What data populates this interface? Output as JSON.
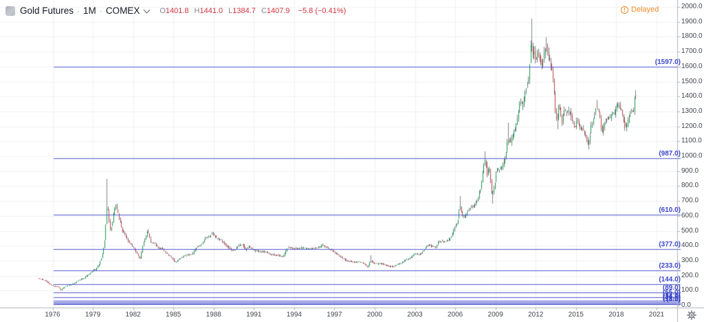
{
  "header": {
    "symbol_title": "Gold Futures",
    "separator": "·",
    "interval": "1M",
    "exchange": "COMEX",
    "ohlc": {
      "o_label": "O",
      "o": "1401.8",
      "h_label": "H",
      "h": "1441.0",
      "l_label": "L",
      "l": "1384.7",
      "c_label": "C",
      "c": "1407.9",
      "change": "−5.8 (−0.41%)"
    },
    "delayed_icon_glyph": "!",
    "delayed_label": "Delayed"
  },
  "colors": {
    "background": "#ffffff",
    "grid": "#f0f1f4",
    "border": "#b2b5be",
    "axis_text": "#42454e",
    "up_candle": "#109648",
    "down_candle": "#bf3d42",
    "wick": "#7f828a",
    "level_line": "#5058d0",
    "level_label": "#3c47c6",
    "negative_red": "#d0323f",
    "delayed_orange": "#ee8b27"
  },
  "price_axis": {
    "labels": [
      "2000.0",
      "1900.0",
      "1800.0",
      "1700.0",
      "1600.0",
      "1500.0",
      "1400.0",
      "1300.0",
      "1200.0",
      "1100.0",
      "1000.0",
      "900.0",
      "800.0",
      "700.0",
      "600.0",
      "500.0",
      "400.0",
      "300.0",
      "200.0",
      "100.0",
      "0.0"
    ]
  },
  "time_axis": {
    "years": [
      "1976",
      "1979",
      "1982",
      "1985",
      "1988",
      "1991",
      "1994",
      "1997",
      "2000",
      "2003",
      "2006",
      "2009",
      "2012",
      "2015",
      "2018",
      "2021"
    ]
  },
  "levels": [
    {
      "price": 1597.0,
      "label": "(1597.0)"
    },
    {
      "price": 987.0,
      "label": "(987.0)"
    },
    {
      "price": 610.0,
      "label": "(610.0)"
    },
    {
      "price": 377.0,
      "label": "(377.0)"
    },
    {
      "price": 233.0,
      "label": "(233.0)"
    },
    {
      "price": 144.0,
      "label": "(144.0)"
    },
    {
      "price": 89.0,
      "label": "(89.0)"
    },
    {
      "price": 55.0,
      "label": "(55.0)"
    },
    {
      "price": 34.0,
      "label": "(34.0)"
    },
    {
      "price": 21.0,
      "label": "(21.0)"
    },
    {
      "price": 13.0,
      "label": "(13.0)"
    },
    {
      "price": 8.0,
      "label": "(8.0)"
    }
  ],
  "chart_data": {
    "type": "candlestick",
    "title": "Gold Futures 1M COMEX",
    "interval_months": 1,
    "y_range": [
      0,
      2000
    ],
    "y_step": 100,
    "x_year_ticks": [
      1976,
      1979,
      1982,
      1985,
      1988,
      1991,
      1994,
      1997,
      2000,
      2003,
      2006,
      2009,
      2012,
      2015,
      2018,
      2021
    ],
    "t_start": 1974.9,
    "t_end": 2019.47,
    "last_candle": {
      "open": 1401.8,
      "high": 1441.0,
      "low": 1384.7,
      "close": 1407.9,
      "change": -5.8,
      "change_pct": -0.41
    },
    "fib_levels": [
      1597,
      987,
      610,
      377,
      233,
      144,
      89,
      55,
      34,
      21,
      13,
      8
    ],
    "price_path": [
      [
        1974.9,
        184
      ],
      [
        1975.2,
        176
      ],
      [
        1975.5,
        165
      ],
      [
        1975.8,
        142
      ],
      [
        1976.1,
        131
      ],
      [
        1976.4,
        127
      ],
      [
        1976.65,
        104
      ],
      [
        1976.9,
        125
      ],
      [
        1977.2,
        135
      ],
      [
        1977.6,
        146
      ],
      [
        1978.0,
        172
      ],
      [
        1978.4,
        184
      ],
      [
        1978.7,
        208
      ],
      [
        1979.0,
        233
      ],
      [
        1979.25,
        242
      ],
      [
        1979.5,
        278
      ],
      [
        1979.7,
        330
      ],
      [
        1979.85,
        400
      ],
      [
        1979.95,
        470
      ],
      [
        1980.04,
        660
      ],
      [
        1980.15,
        640
      ],
      [
        1980.3,
        505
      ],
      [
        1980.45,
        540
      ],
      [
        1980.6,
        630
      ],
      [
        1980.72,
        680
      ],
      [
        1980.85,
        640
      ],
      [
        1981.0,
        580
      ],
      [
        1981.2,
        505
      ],
      [
        1981.45,
        470
      ],
      [
        1981.7,
        420
      ],
      [
        1981.95,
        400
      ],
      [
        1982.2,
        365
      ],
      [
        1982.45,
        325
      ],
      [
        1982.55,
        310
      ],
      [
        1982.75,
        405
      ],
      [
        1982.95,
        455
      ],
      [
        1983.1,
        500
      ],
      [
        1983.3,
        425
      ],
      [
        1983.6,
        415
      ],
      [
        1983.9,
        385
      ],
      [
        1984.2,
        380
      ],
      [
        1984.55,
        345
      ],
      [
        1984.9,
        320
      ],
      [
        1985.15,
        290
      ],
      [
        1985.5,
        315
      ],
      [
        1985.8,
        330
      ],
      [
        1986.1,
        340
      ],
      [
        1986.45,
        345
      ],
      [
        1986.75,
        390
      ],
      [
        1987.05,
        405
      ],
      [
        1987.4,
        450
      ],
      [
        1987.65,
        460
      ],
      [
        1987.95,
        485
      ],
      [
        1988.2,
        455
      ],
      [
        1988.5,
        440
      ],
      [
        1988.8,
        420
      ],
      [
        1989.1,
        390
      ],
      [
        1989.4,
        370
      ],
      [
        1989.7,
        380
      ],
      [
        1989.95,
        405
      ],
      [
        1990.15,
        412
      ],
      [
        1990.4,
        370
      ],
      [
        1990.65,
        395
      ],
      [
        1990.85,
        380
      ],
      [
        1991.1,
        366
      ],
      [
        1991.5,
        362
      ],
      [
        1991.9,
        358
      ],
      [
        1992.3,
        342
      ],
      [
        1992.7,
        338
      ],
      [
        1993.0,
        330
      ],
      [
        1993.2,
        328
      ],
      [
        1993.55,
        392
      ],
      [
        1993.8,
        386
      ],
      [
        1994.2,
        382
      ],
      [
        1994.6,
        388
      ],
      [
        1995.0,
        378
      ],
      [
        1995.5,
        386
      ],
      [
        1995.9,
        388
      ],
      [
        1996.1,
        410
      ],
      [
        1996.45,
        388
      ],
      [
        1996.8,
        370
      ],
      [
        1997.15,
        348
      ],
      [
        1997.5,
        325
      ],
      [
        1997.85,
        302
      ],
      [
        1998.2,
        297
      ],
      [
        1998.55,
        288
      ],
      [
        1998.9,
        292
      ],
      [
        1999.2,
        282
      ],
      [
        1999.5,
        257
      ],
      [
        1999.72,
        300
      ],
      [
        1999.9,
        288
      ],
      [
        2000.2,
        280
      ],
      [
        2000.55,
        282
      ],
      [
        2000.9,
        268
      ],
      [
        2001.15,
        262
      ],
      [
        2001.35,
        260
      ],
      [
        2001.7,
        272
      ],
      [
        2002.0,
        284
      ],
      [
        2002.35,
        308
      ],
      [
        2002.7,
        318
      ],
      [
        2003.0,
        348
      ],
      [
        2003.35,
        340
      ],
      [
        2003.7,
        372
      ],
      [
        2003.95,
        408
      ],
      [
        2004.25,
        398
      ],
      [
        2004.55,
        390
      ],
      [
        2004.85,
        435
      ],
      [
        2005.1,
        426
      ],
      [
        2005.45,
        430
      ],
      [
        2005.75,
        462
      ],
      [
        2006.0,
        530
      ],
      [
        2006.2,
        560
      ],
      [
        2006.38,
        675
      ],
      [
        2006.55,
        595
      ],
      [
        2006.8,
        605
      ],
      [
        2007.1,
        655
      ],
      [
        2007.45,
        665
      ],
      [
        2007.7,
        710
      ],
      [
        2007.95,
        800
      ],
      [
        2008.15,
        940
      ],
      [
        2008.25,
        975
      ],
      [
        2008.4,
        880
      ],
      [
        2008.55,
        925
      ],
      [
        2008.75,
        735
      ],
      [
        2008.95,
        800
      ],
      [
        2009.1,
        920
      ],
      [
        2009.3,
        905
      ],
      [
        2009.55,
        935
      ],
      [
        2009.75,
        995
      ],
      [
        2009.95,
        1120
      ],
      [
        2010.15,
        1090
      ],
      [
        2010.4,
        1170
      ],
      [
        2010.6,
        1220
      ],
      [
        2010.85,
        1360
      ],
      [
        2011.05,
        1340
      ],
      [
        2011.25,
        1440
      ],
      [
        2011.5,
        1520
      ],
      [
        2011.62,
        1700
      ],
      [
        2011.7,
        1800
      ],
      [
        2011.78,
        1640
      ],
      [
        2011.88,
        1730
      ],
      [
        2012.0,
        1650
      ],
      [
        2012.15,
        1700
      ],
      [
        2012.35,
        1640
      ],
      [
        2012.5,
        1600
      ],
      [
        2012.65,
        1680
      ],
      [
        2012.78,
        1760
      ],
      [
        2012.95,
        1680
      ],
      [
        2013.1,
        1620
      ],
      [
        2013.28,
        1560
      ],
      [
        2013.38,
        1450
      ],
      [
        2013.5,
        1280
      ],
      [
        2013.62,
        1230
      ],
      [
        2013.72,
        1350
      ],
      [
        2013.85,
        1300
      ],
      [
        2013.98,
        1230
      ],
      [
        2014.15,
        1300
      ],
      [
        2014.35,
        1290
      ],
      [
        2014.55,
        1310
      ],
      [
        2014.75,
        1230
      ],
      [
        2014.95,
        1190
      ],
      [
        2015.1,
        1260
      ],
      [
        2015.3,
        1190
      ],
      [
        2015.55,
        1170
      ],
      [
        2015.75,
        1130
      ],
      [
        2015.95,
        1065
      ],
      [
        2016.15,
        1200
      ],
      [
        2016.35,
        1250
      ],
      [
        2016.5,
        1340
      ],
      [
        2016.65,
        1320
      ],
      [
        2016.8,
        1270
      ],
      [
        2016.95,
        1145
      ],
      [
        2017.15,
        1230
      ],
      [
        2017.35,
        1260
      ],
      [
        2017.55,
        1250
      ],
      [
        2017.75,
        1300
      ],
      [
        2017.9,
        1280
      ],
      [
        2018.05,
        1340
      ],
      [
        2018.25,
        1330
      ],
      [
        2018.45,
        1290
      ],
      [
        2018.6,
        1220
      ],
      [
        2018.68,
        1185
      ],
      [
        2018.85,
        1215
      ],
      [
        2019.0,
        1285
      ],
      [
        2019.15,
        1310
      ],
      [
        2019.3,
        1288
      ],
      [
        2019.42,
        1410
      ]
    ],
    "wick_spikes": [
      [
        1980.04,
        850
      ],
      [
        1983.1,
        512
      ],
      [
        1999.72,
        338
      ],
      [
        2006.38,
        732
      ],
      [
        2008.2,
        1033
      ],
      [
        2009.95,
        1227
      ],
      [
        2011.7,
        1920
      ],
      [
        2012.78,
        1798
      ],
      [
        2016.5,
        1377
      ]
    ],
    "low_spikes": [
      [
        1976.65,
        101
      ],
      [
        1985.15,
        284
      ],
      [
        1999.5,
        252
      ],
      [
        2001.35,
        255
      ],
      [
        2008.75,
        682
      ],
      [
        2013.62,
        1180
      ],
      [
        2015.95,
        1046
      ]
    ]
  }
}
